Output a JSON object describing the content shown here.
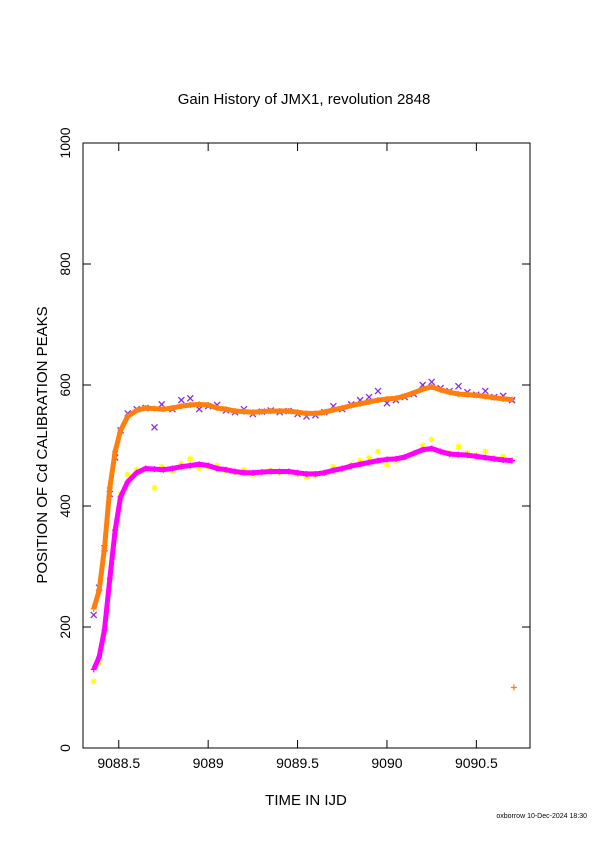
{
  "chart_data": {
    "type": "scatter",
    "title": "Gain History of JMX1, revolution 2848",
    "xlabel": "TIME IN IJD",
    "ylabel": "POSITION OF Cd CALIBRATION PEAKS",
    "xlim": [
      9088.3,
      9090.8
    ],
    "ylim": [
      0,
      1000
    ],
    "x_ticks": [
      9088.5,
      9089,
      9089.5,
      9090,
      9090.5
    ],
    "x_tick_labels": [
      "9088.5",
      "9089",
      "9089.5",
      "9090",
      "9090.5"
    ],
    "y_ticks": [
      0,
      200,
      400,
      600,
      800,
      1000
    ],
    "y_tick_labels": [
      "0",
      "200",
      "400",
      "600",
      "800",
      "1000"
    ],
    "grid": false,
    "series": [
      {
        "marker": "x",
        "color": "#8a2be2",
        "role": "upper raw",
        "x": [
          9088.36,
          9088.39,
          9088.42,
          9088.45,
          9088.48,
          9088.51,
          9088.55,
          9088.6,
          9088.65,
          9088.7,
          9088.74,
          9088.8,
          9088.85,
          9088.9,
          9088.95,
          9089.0,
          9089.05,
          9089.1,
          9089.15,
          9089.2,
          9089.25,
          9089.3,
          9089.35,
          9089.4,
          9089.45,
          9089.5,
          9089.55,
          9089.6,
          9089.65,
          9089.7,
          9089.75,
          9089.8,
          9089.85,
          9089.9,
          9089.95,
          9090.0,
          9090.05,
          9090.1,
          9090.15,
          9090.2,
          9090.25,
          9090.3,
          9090.35,
          9090.4,
          9090.45,
          9090.5,
          9090.55,
          9090.6,
          9090.65,
          9090.7
        ],
        "y": [
          220,
          265,
          330,
          420,
          480,
          525,
          553,
          560,
          562,
          530,
          568,
          560,
          575,
          578,
          560,
          565,
          567,
          558,
          555,
          560,
          552,
          556,
          558,
          555,
          557,
          552,
          548,
          550,
          555,
          565,
          560,
          568,
          575,
          580,
          590,
          570,
          575,
          580,
          585,
          600,
          605,
          595,
          590,
          598,
          588,
          584,
          590,
          580,
          582,
          575
        ]
      },
      {
        "marker": "+",
        "color": "#ff7f0e",
        "role": "upper smoothed",
        "x": [
          9088.36,
          9088.39,
          9088.42,
          9088.45,
          9088.48,
          9088.51,
          9088.55,
          9088.6,
          9088.65,
          9088.7,
          9088.75,
          9088.8,
          9088.85,
          9088.9,
          9088.95,
          9089.0,
          9089.05,
          9089.1,
          9089.15,
          9089.2,
          9089.25,
          9089.3,
          9089.35,
          9089.4,
          9089.45,
          9089.5,
          9089.55,
          9089.6,
          9089.65,
          9089.7,
          9089.75,
          9089.8,
          9089.85,
          9089.9,
          9089.95,
          9090.0,
          9090.05,
          9090.1,
          9090.15,
          9090.2,
          9090.25,
          9090.3,
          9090.35,
          9090.4,
          9090.45,
          9090.5,
          9090.55,
          9090.6,
          9090.65,
          9090.7,
          9090.71
        ],
        "y": [
          230,
          260,
          330,
          430,
          490,
          525,
          548,
          558,
          562,
          561,
          560,
          562,
          565,
          567,
          568,
          567,
          562,
          560,
          557,
          556,
          555,
          556,
          557,
          557,
          557,
          555,
          553,
          553,
          555,
          559,
          562,
          566,
          569,
          572,
          575,
          577,
          578,
          582,
          587,
          593,
          597,
          592,
          588,
          585,
          584,
          583,
          581,
          579,
          577,
          576,
          100
        ]
      },
      {
        "marker": "*",
        "color": "#ffff00",
        "role": "lower raw",
        "x": [
          9088.36,
          9088.39,
          9088.42,
          9088.45,
          9088.48,
          9088.51,
          9088.55,
          9088.6,
          9088.65,
          9088.7,
          9088.74,
          9088.8,
          9088.85,
          9088.9,
          9088.95,
          9089.0,
          9089.05,
          9089.1,
          9089.15,
          9089.2,
          9089.25,
          9089.3,
          9089.35,
          9089.4,
          9089.45,
          9089.5,
          9089.55,
          9089.6,
          9089.65,
          9089.7,
          9089.75,
          9089.8,
          9089.85,
          9089.9,
          9089.95,
          9090.0,
          9090.05,
          9090.1,
          9090.15,
          9090.2,
          9090.25,
          9090.3,
          9090.35,
          9090.4,
          9090.45,
          9090.5,
          9090.55,
          9090.6,
          9090.65,
          9090.7
        ],
        "y": [
          110,
          140,
          190,
          280,
          360,
          420,
          452,
          460,
          462,
          430,
          465,
          458,
          470,
          478,
          462,
          465,
          467,
          458,
          455,
          460,
          452,
          456,
          458,
          455,
          457,
          452,
          448,
          450,
          455,
          465,
          460,
          468,
          475,
          480,
          490,
          468,
          475,
          480,
          485,
          500,
          510,
          490,
          488,
          498,
          488,
          484,
          490,
          480,
          482,
          475
        ]
      },
      {
        "marker": "+",
        "color": "#ff00ff",
        "role": "lower smoothed",
        "x": [
          9088.36,
          9088.39,
          9088.42,
          9088.45,
          9088.48,
          9088.51,
          9088.55,
          9088.6,
          9088.65,
          9088.7,
          9088.75,
          9088.8,
          9088.85,
          9088.9,
          9088.95,
          9089.0,
          9089.05,
          9089.1,
          9089.15,
          9089.2,
          9089.25,
          9089.3,
          9089.35,
          9089.4,
          9089.45,
          9089.5,
          9089.55,
          9089.6,
          9089.65,
          9089.7,
          9089.75,
          9089.8,
          9089.85,
          9089.9,
          9089.95,
          9090.0,
          9090.05,
          9090.1,
          9090.15,
          9090.2,
          9090.25,
          9090.3,
          9090.35,
          9090.4,
          9090.45,
          9090.5,
          9090.55,
          9090.6,
          9090.65,
          9090.7
        ],
        "y": [
          130,
          150,
          195,
          280,
          360,
          415,
          440,
          455,
          462,
          461,
          460,
          462,
          465,
          467,
          469,
          467,
          462,
          460,
          457,
          455,
          455,
          456,
          457,
          457,
          457,
          455,
          453,
          453,
          455,
          459,
          462,
          466,
          469,
          472,
          475,
          477,
          478,
          481,
          487,
          493,
          495,
          490,
          486,
          485,
          484,
          482,
          480,
          478,
          476,
          475
        ]
      }
    ]
  },
  "footer": "oxborrow 10-Dec-2024 18:30"
}
